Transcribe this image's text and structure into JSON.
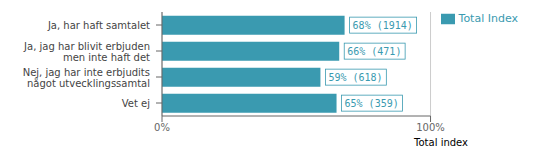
{
  "chart_data": {
    "type": "bar",
    "orientation": "horizontal",
    "categories": [
      "Ja, har haft samtalet",
      "Ja, jag har blivit erbjuden\nmen inte haft det",
      "Nej, jag har inte erbjudits\nnågot utvecklingssamtal",
      "Vet ej"
    ],
    "series": [
      {
        "name": "Total Index",
        "color": "#3a9ab0",
        "values": [
          68,
          66,
          59,
          65
        ],
        "value_labels": [
          "68% (1914)",
          "66% (471)",
          "59% (618)",
          "65% (359)"
        ]
      }
    ],
    "data_labels": true,
    "xlim": [
      0,
      100
    ],
    "xticks": [
      {
        "value": 0,
        "label": "0%"
      },
      {
        "value": 100,
        "label": "100%"
      }
    ],
    "grid": true,
    "legend": "right",
    "annotations": [
      "Total index"
    ]
  }
}
